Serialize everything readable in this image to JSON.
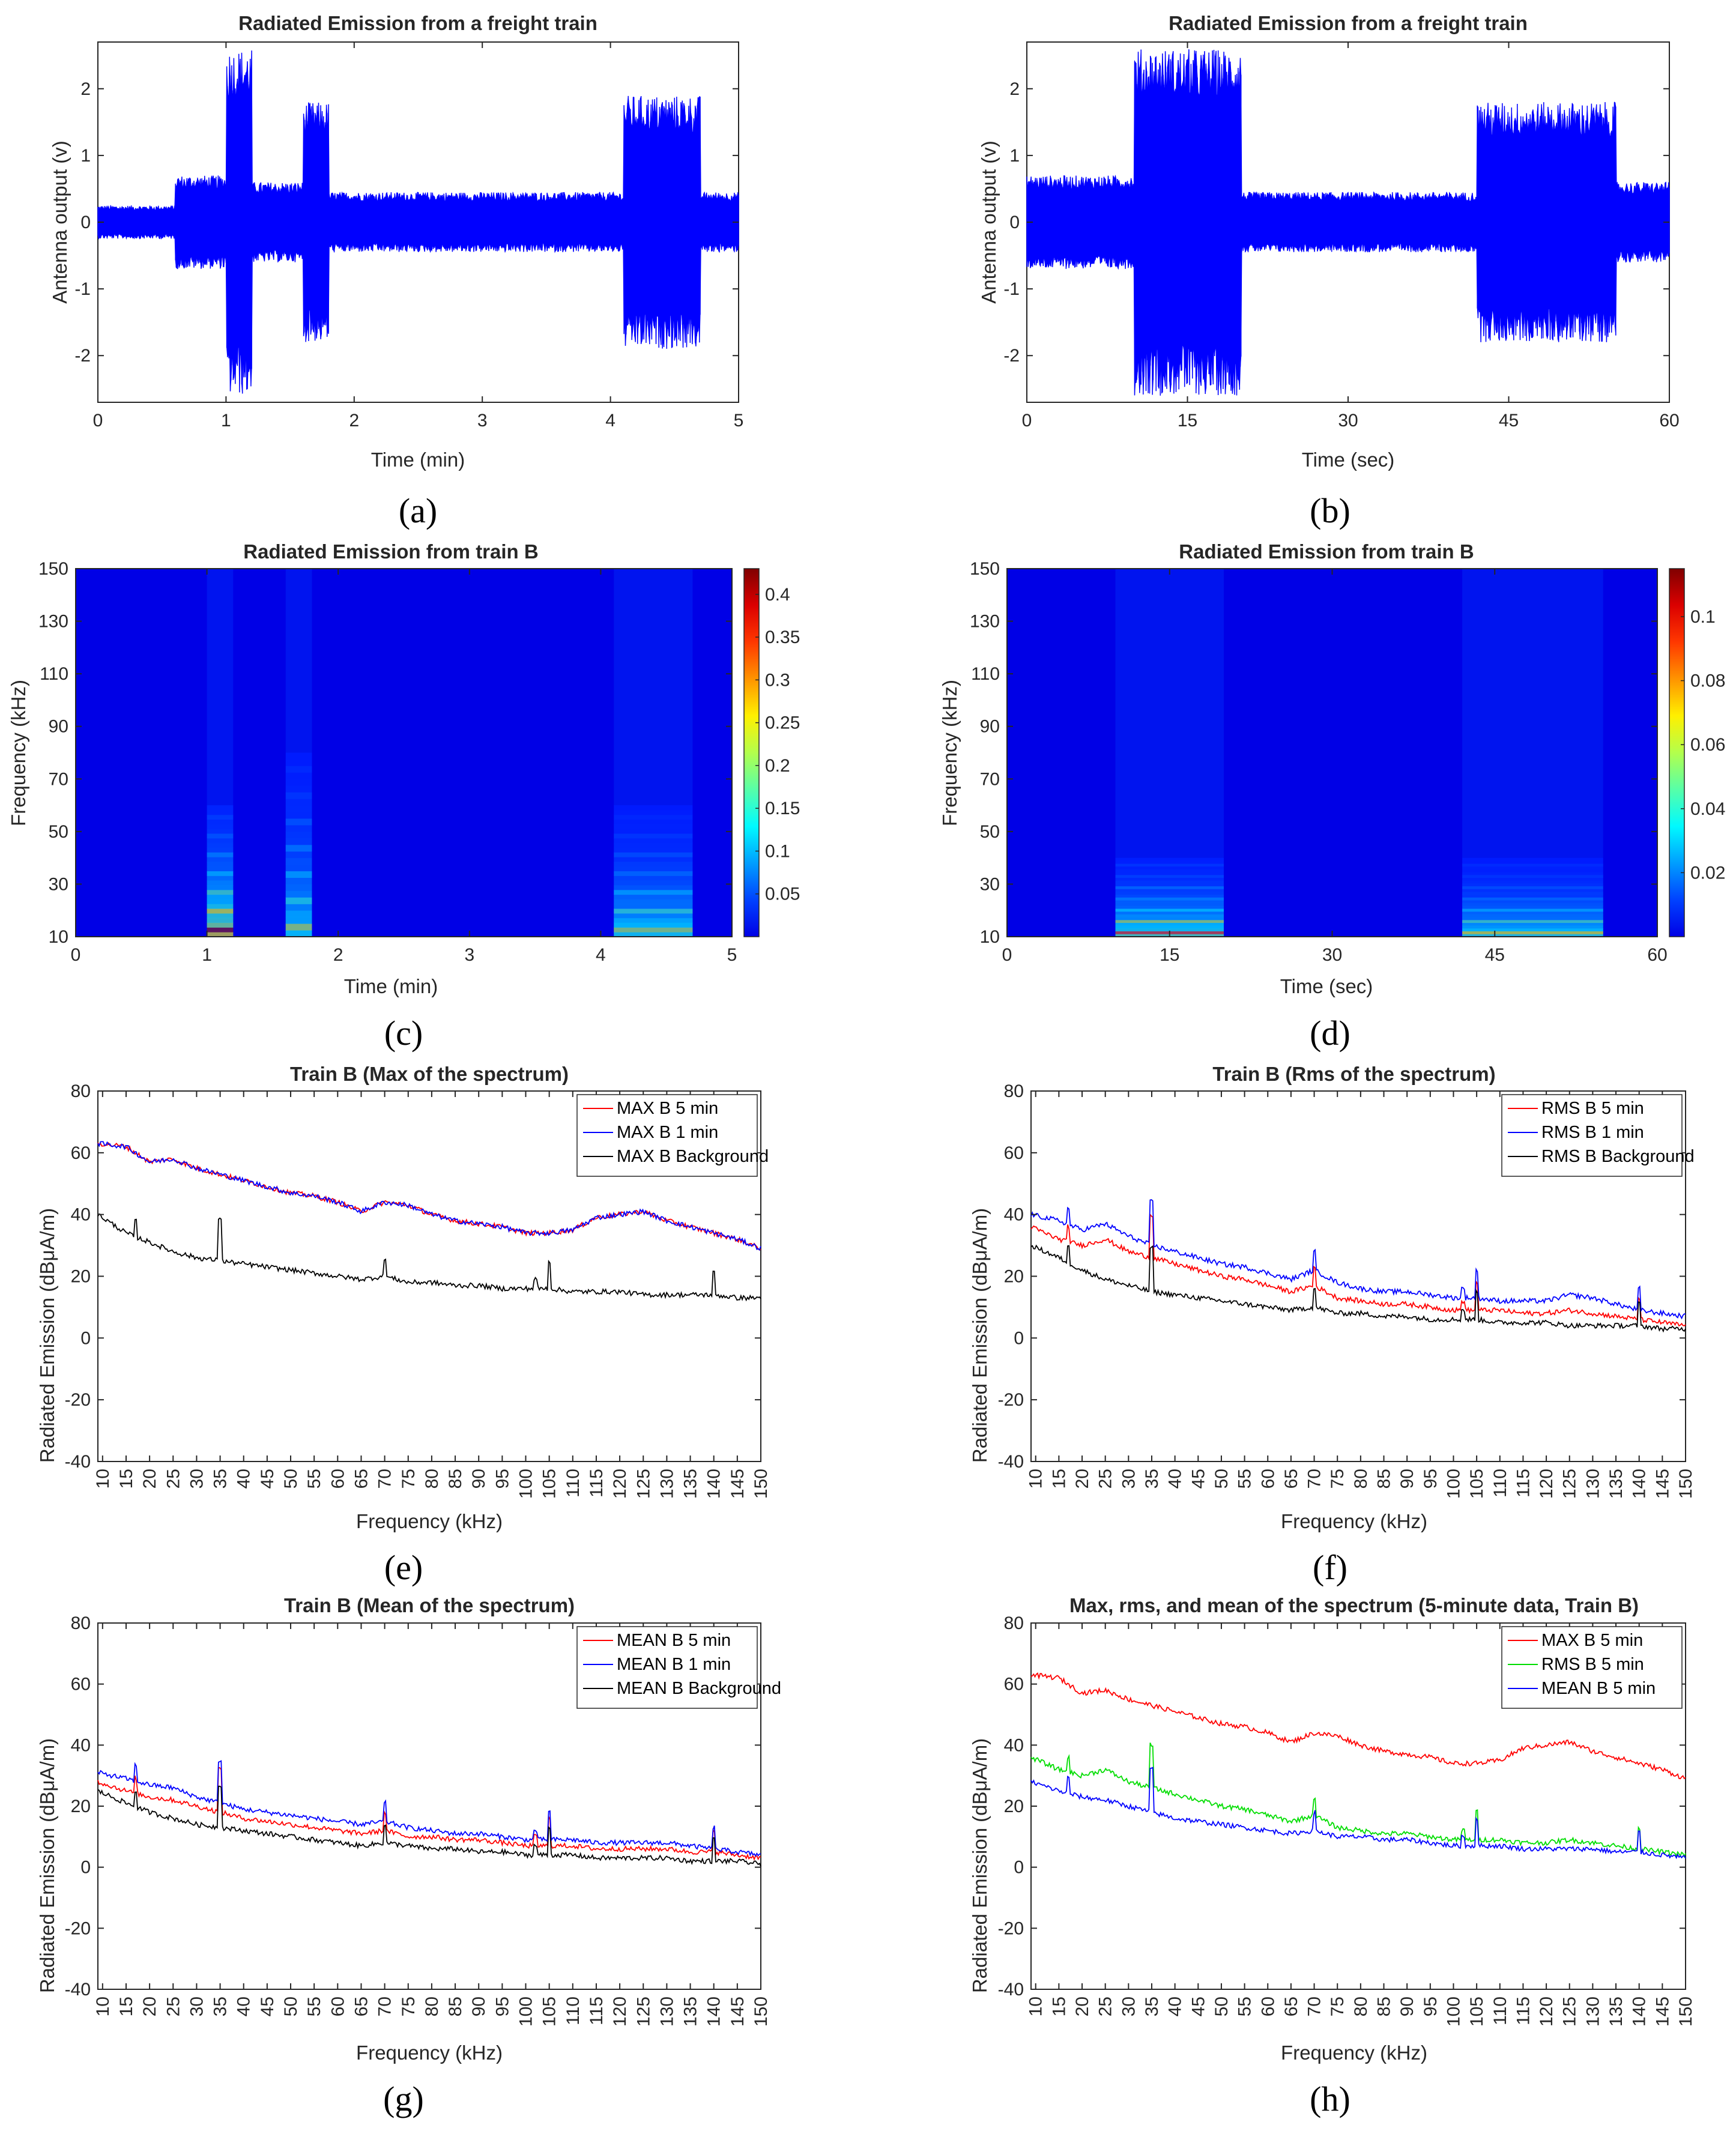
{
  "captions": {
    "a": "(a)",
    "b": "(b)",
    "c": "(c)",
    "d": "(d)",
    "e": "(e)",
    "f": "(f)",
    "g": "(g)",
    "h": "(h)"
  },
  "chart_data": [
    {
      "id": "a",
      "type": "line",
      "title": "Radiated Emission from a freight train",
      "xlabel": "Time (min)",
      "ylabel": "Antenna output (v)",
      "xlim": [
        0,
        5
      ],
      "ylim": [
        -2.7,
        2.7
      ],
      "xticks": [
        0,
        1,
        2,
        3,
        4,
        5
      ],
      "yticks": [
        -2,
        -1,
        0,
        1,
        2
      ],
      "color": "#0000ff",
      "envelope_segments": [
        {
          "t": [
            0,
            0.6
          ],
          "max": 0.25,
          "min": -0.25
        },
        {
          "t": [
            0.6,
            1.0
          ],
          "max": 0.7,
          "min": -0.7
        },
        {
          "t": [
            1.0,
            1.2
          ],
          "max": 2.6,
          "min": -2.6
        },
        {
          "t": [
            1.2,
            1.6
          ],
          "max": 0.6,
          "min": -0.6
        },
        {
          "t": [
            1.6,
            1.8
          ],
          "max": 1.8,
          "min": -1.8
        },
        {
          "t": [
            1.8,
            4.1
          ],
          "max": 0.45,
          "min": -0.45
        },
        {
          "t": [
            4.1,
            4.7
          ],
          "max": 1.9,
          "min": -1.9
        },
        {
          "t": [
            4.7,
            5.0
          ],
          "max": 0.45,
          "min": -0.45
        }
      ]
    },
    {
      "id": "b",
      "type": "line",
      "title": "Radiated Emission from a freight train",
      "xlabel": "Time (sec)",
      "ylabel": "Antenna output (v)",
      "xlim": [
        0,
        60
      ],
      "ylim": [
        -2.7,
        2.7
      ],
      "xticks": [
        0,
        15,
        30,
        45,
        60
      ],
      "yticks": [
        -2,
        -1,
        0,
        1,
        2
      ],
      "color": "#0000ff",
      "envelope_segments": [
        {
          "t": [
            0,
            10
          ],
          "max": 0.7,
          "min": -0.7
        },
        {
          "t": [
            10,
            20
          ],
          "max": 2.6,
          "min": -2.6
        },
        {
          "t": [
            20,
            42
          ],
          "max": 0.45,
          "min": -0.45
        },
        {
          "t": [
            42,
            55
          ],
          "max": 1.8,
          "min": -1.8
        },
        {
          "t": [
            55,
            60
          ],
          "max": 0.6,
          "min": -0.6
        }
      ]
    },
    {
      "id": "c",
      "type": "heatmap",
      "title": "Radiated Emission from train B",
      "xlabel": "Time (min)",
      "ylabel": "Frequency (kHz)",
      "xlim": [
        0,
        5
      ],
      "ylim": [
        10,
        150
      ],
      "xticks": [
        0,
        1,
        2,
        3,
        4,
        5
      ],
      "yticks": [
        10,
        30,
        50,
        70,
        90,
        110,
        130,
        150
      ],
      "colorbar": {
        "range": [
          0,
          0.43
        ],
        "ticks": [
          0.05,
          0.1,
          0.15,
          0.2,
          0.25,
          0.3,
          0.35,
          0.4
        ]
      },
      "hot_regions": [
        {
          "t": [
            1.0,
            1.2
          ],
          "f": [
            10,
            60
          ],
          "level": 0.43
        },
        {
          "t": [
            1.6,
            1.8
          ],
          "f": [
            10,
            80
          ],
          "level": 0.25
        },
        {
          "t": [
            4.1,
            4.7
          ],
          "f": [
            10,
            60
          ],
          "level": 0.25
        }
      ]
    },
    {
      "id": "d",
      "type": "heatmap",
      "title": "Radiated Emission from train B",
      "xlabel": "Time (sec)",
      "ylabel": "Frequency (kHz)",
      "xlim": [
        0,
        60
      ],
      "ylim": [
        10,
        150
      ],
      "xticks": [
        0,
        15,
        30,
        45,
        60
      ],
      "yticks": [
        10,
        30,
        50,
        70,
        90,
        110,
        130,
        150
      ],
      "colorbar": {
        "range": [
          0,
          0.115
        ],
        "ticks": [
          0.02,
          0.04,
          0.06,
          0.08,
          0.1
        ]
      },
      "hot_regions": [
        {
          "t": [
            10,
            20
          ],
          "f": [
            10,
            40
          ],
          "level": 0.09
        },
        {
          "t": [
            42,
            55
          ],
          "f": [
            10,
            40
          ],
          "level": 0.07
        }
      ]
    },
    {
      "id": "e",
      "type": "line",
      "title": "Train B (Max of the spectrum)",
      "xlabel": "Frequency (kHz)",
      "ylabel": "Radiated Emission (dBμA/m)",
      "xlim": [
        9,
        150
      ],
      "ylim": [
        -40,
        80
      ],
      "xticks": [
        10,
        15,
        20,
        25,
        30,
        35,
        40,
        45,
        50,
        55,
        60,
        65,
        70,
        75,
        80,
        85,
        90,
        95,
        100,
        105,
        110,
        115,
        120,
        125,
        130,
        135,
        140,
        145,
        150
      ],
      "yticks": [
        -40,
        -20,
        0,
        20,
        40,
        60,
        80
      ],
      "x": [
        9,
        15,
        20,
        25,
        30,
        35,
        40,
        45,
        50,
        55,
        60,
        65,
        70,
        75,
        80,
        85,
        90,
        95,
        100,
        105,
        110,
        115,
        120,
        125,
        130,
        135,
        140,
        145,
        150
      ],
      "series": [
        {
          "name": "MAX B 5 min",
          "color": "#ff0000",
          "values": [
            63,
            62,
            57,
            58,
            55,
            53,
            51,
            49,
            47,
            46,
            44,
            41,
            44,
            43,
            40,
            38,
            37,
            36,
            34,
            34,
            35,
            39,
            40,
            41,
            38,
            36,
            34,
            32,
            29
          ]
        },
        {
          "name": "MAX B 1 min",
          "color": "#0000ff",
          "values": [
            63,
            62,
            57,
            58,
            55,
            53,
            51,
            49,
            47,
            46,
            44,
            41,
            44,
            43,
            40,
            38,
            37,
            36,
            34,
            34,
            35,
            39,
            40,
            41,
            38,
            36,
            34,
            32,
            29
          ]
        },
        {
          "name": "MAX B Background",
          "color": "#000000",
          "values": [
            40,
            34,
            31,
            28,
            26,
            25,
            24,
            23,
            22,
            21,
            20,
            19,
            20,
            18,
            18,
            17,
            17,
            16,
            16,
            16,
            15,
            15,
            15,
            14,
            14,
            14,
            14,
            13,
            13
          ]
        }
      ],
      "legend": "top-right"
    },
    {
      "id": "f",
      "type": "line",
      "title": "Train B (Rms of the spectrum)",
      "xlabel": "Frequency (kHz)",
      "ylabel": "Radiated Emission (dBμA/m)",
      "xlim": [
        9,
        150
      ],
      "ylim": [
        -40,
        80
      ],
      "xticks": [
        10,
        15,
        20,
        25,
        30,
        35,
        40,
        45,
        50,
        55,
        60,
        65,
        70,
        75,
        80,
        85,
        90,
        95,
        100,
        105,
        110,
        115,
        120,
        125,
        130,
        135,
        140,
        145,
        150
      ],
      "yticks": [
        -40,
        -20,
        0,
        20,
        40,
        60,
        80
      ],
      "x": [
        9,
        15,
        20,
        25,
        30,
        35,
        40,
        45,
        50,
        55,
        60,
        65,
        70,
        75,
        80,
        85,
        90,
        95,
        100,
        105,
        110,
        115,
        120,
        125,
        130,
        135,
        140,
        145,
        150
      ],
      "series": [
        {
          "name": "RMS B 5 min",
          "color": "#ff0000",
          "values": [
            36,
            32,
            30,
            32,
            28,
            26,
            24,
            22,
            20,
            19,
            17,
            15,
            17,
            13,
            12,
            11,
            11,
            10,
            9,
            9,
            9,
            8,
            8,
            9,
            8,
            7,
            6,
            5,
            4
          ]
        },
        {
          "name": "RMS B 1 min",
          "color": "#0000ff",
          "values": [
            40,
            38,
            35,
            37,
            33,
            30,
            28,
            26,
            24,
            23,
            21,
            19,
            22,
            18,
            16,
            15,
            15,
            14,
            13,
            13,
            12,
            12,
            12,
            14,
            13,
            11,
            9,
            8,
            7
          ]
        },
        {
          "name": "RMS B Background",
          "color": "#000000",
          "values": [
            30,
            26,
            22,
            19,
            17,
            15,
            14,
            13,
            12,
            11,
            10,
            9,
            10,
            8,
            8,
            7,
            7,
            6,
            6,
            6,
            5,
            5,
            5,
            4,
            4,
            4,
            4,
            3,
            3
          ]
        }
      ],
      "legend": "top-right"
    },
    {
      "id": "g",
      "type": "line",
      "title": "Train B (Mean of the spectrum)",
      "xlabel": "Frequency (kHz)",
      "ylabel": "Radiated Emission (dBμA/m)",
      "xlim": [
        9,
        150
      ],
      "ylim": [
        -40,
        80
      ],
      "xticks": [
        10,
        15,
        20,
        25,
        30,
        35,
        40,
        45,
        50,
        55,
        60,
        65,
        70,
        75,
        80,
        85,
        90,
        95,
        100,
        105,
        110,
        115,
        120,
        125,
        130,
        135,
        140,
        145,
        150
      ],
      "yticks": [
        -40,
        -20,
        0,
        20,
        40,
        60,
        80
      ],
      "x": [
        9,
        15,
        20,
        25,
        30,
        35,
        40,
        45,
        50,
        55,
        60,
        65,
        70,
        75,
        80,
        85,
        90,
        95,
        100,
        105,
        110,
        115,
        120,
        125,
        130,
        135,
        140,
        145,
        150
      ],
      "series": [
        {
          "name": "MEAN B 5 min",
          "color": "#ff0000",
          "values": [
            28,
            25,
            23,
            22,
            20,
            18,
            16,
            15,
            14,
            13,
            12,
            11,
            12,
            10,
            10,
            9,
            9,
            8,
            7,
            7,
            7,
            6,
            6,
            6,
            6,
            5,
            5,
            4,
            3
          ]
        },
        {
          "name": "MEAN B 1 min",
          "color": "#0000ff",
          "values": [
            31,
            29,
            27,
            26,
            23,
            21,
            19,
            18,
            17,
            16,
            15,
            14,
            15,
            13,
            12,
            11,
            11,
            10,
            9,
            9,
            9,
            8,
            8,
            8,
            8,
            7,
            6,
            5,
            4
          ]
        },
        {
          "name": "MEAN B Background",
          "color": "#000000",
          "values": [
            25,
            21,
            18,
            16,
            14,
            13,
            12,
            11,
            10,
            9,
            8,
            7,
            8,
            7,
            6,
            6,
            5,
            5,
            4,
            4,
            4,
            3,
            3,
            3,
            3,
            2,
            2,
            2,
            1
          ]
        }
      ],
      "legend": "top-right"
    },
    {
      "id": "h",
      "type": "line",
      "title": "Max, rms, and mean of the spectrum (5-minute data, Train B)",
      "xlabel": "Frequency (kHz)",
      "ylabel": "Radiated Emission (dBμA/m)",
      "xlim": [
        9,
        150
      ],
      "ylim": [
        -40,
        80
      ],
      "xticks": [
        10,
        15,
        20,
        25,
        30,
        35,
        40,
        45,
        50,
        55,
        60,
        65,
        70,
        75,
        80,
        85,
        90,
        95,
        100,
        105,
        110,
        115,
        120,
        125,
        130,
        135,
        140,
        145,
        150
      ],
      "yticks": [
        -40,
        -20,
        0,
        20,
        40,
        60,
        80
      ],
      "x": [
        9,
        15,
        20,
        25,
        30,
        35,
        40,
        45,
        50,
        55,
        60,
        65,
        70,
        75,
        80,
        85,
        90,
        95,
        100,
        105,
        110,
        115,
        120,
        125,
        130,
        135,
        140,
        145,
        150
      ],
      "series": [
        {
          "name": "MAX B 5 min",
          "color": "#ff0000",
          "values": [
            63,
            62,
            57,
            58,
            55,
            53,
            51,
            49,
            47,
            46,
            44,
            41,
            44,
            43,
            40,
            38,
            37,
            36,
            34,
            34,
            35,
            39,
            40,
            41,
            38,
            36,
            34,
            32,
            29
          ]
        },
        {
          "name": "RMS B 5 min",
          "color": "#00dd00",
          "values": [
            36,
            32,
            30,
            32,
            28,
            26,
            24,
            22,
            20,
            19,
            17,
            15,
            17,
            13,
            12,
            11,
            11,
            10,
            9,
            9,
            9,
            8,
            8,
            9,
            8,
            7,
            6,
            5,
            4
          ]
        },
        {
          "name": "MEAN B 5 min",
          "color": "#0000ff",
          "values": [
            28,
            25,
            23,
            22,
            20,
            18,
            16,
            15,
            14,
            13,
            12,
            11,
            12,
            10,
            10,
            9,
            9,
            8,
            7,
            7,
            7,
            6,
            6,
            6,
            6,
            5,
            5,
            4,
            3
          ]
        }
      ],
      "legend": "top-right"
    }
  ]
}
